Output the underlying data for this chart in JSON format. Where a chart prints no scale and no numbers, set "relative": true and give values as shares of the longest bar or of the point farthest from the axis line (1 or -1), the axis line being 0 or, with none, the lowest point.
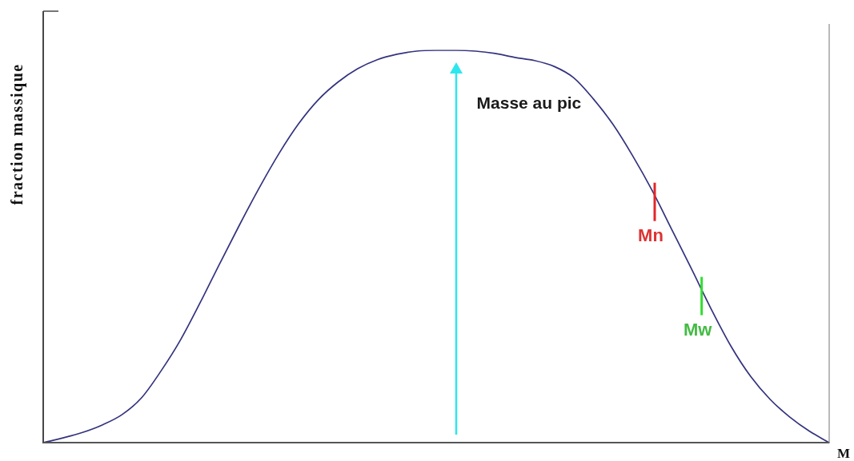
{
  "chart_data": {
    "type": "line",
    "relative": true,
    "xlabel": "M",
    "ylabel": "fraction massique",
    "categories": [
      null,
      null,
      null,
      null,
      null,
      null,
      null,
      null,
      null,
      null,
      null,
      null,
      null,
      null,
      null,
      null,
      null,
      null,
      null,
      null,
      null,
      null,
      null,
      null,
      null,
      null,
      null,
      null,
      null,
      null,
      null,
      null,
      null,
      null,
      null,
      null,
      null,
      null,
      null,
      null,
      null
    ],
    "series": [
      {
        "color": "#33337f",
        "values": [
          0,
          0.012,
          0.026,
          0.045,
          0.071,
          0.114,
          0.183,
          0.263,
          0.358,
          0.458,
          0.556,
          0.65,
          0.737,
          0.813,
          0.874,
          0.919,
          0.953,
          0.976,
          0.99,
          0.998,
          1,
          1,
          0.998,
          0.992,
          0.982,
          0.974,
          0.959,
          0.93,
          0.876,
          0.811,
          0.731,
          0.642,
          0.542,
          0.442,
          0.34,
          0.246,
          0.169,
          0.11,
          0.065,
          0.029,
          0
        ]
      }
    ],
    "annotations": [
      "Masse au pic",
      {
        "text": "Mn",
        "y": 0.63
      },
      {
        "text": "Mw",
        "y": 0.39
      }
    ]
  }
}
